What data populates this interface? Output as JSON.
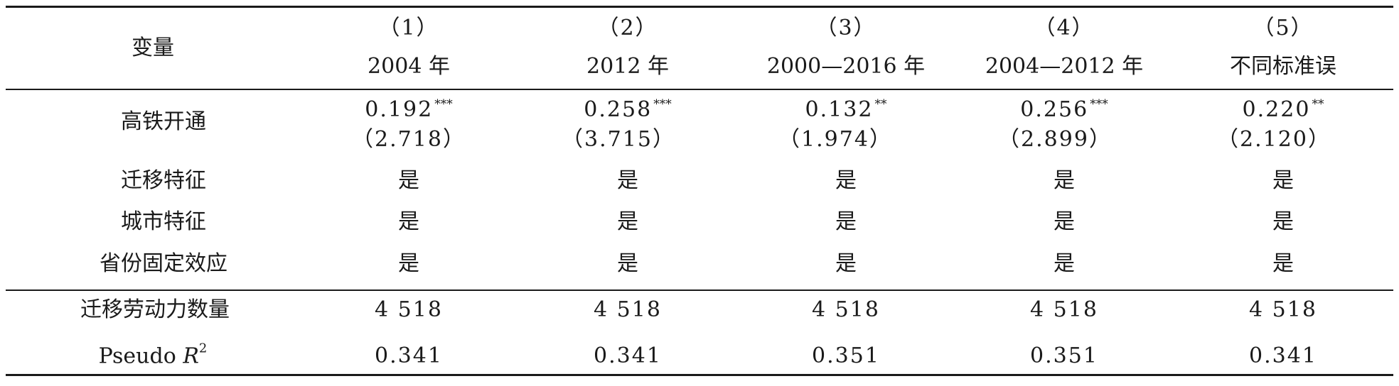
{
  "header": {
    "variable_label": "变量",
    "columns": [
      {
        "num": "（1）",
        "label": "2004 年"
      },
      {
        "num": "（2）",
        "label": "2012 年"
      },
      {
        "num": "（3）",
        "label": "2000—2016 年"
      },
      {
        "num": "（4）",
        "label": "2004—2012 年"
      },
      {
        "num": "（5）",
        "label": "不同标准误"
      }
    ]
  },
  "hsr_row": {
    "label": "高铁开通",
    "coefficients": [
      {
        "value": "0.192",
        "stars": "***",
        "tstat": "（2.718）"
      },
      {
        "value": "0.258",
        "stars": "***",
        "tstat": "（3.715）"
      },
      {
        "value": "0.132",
        "stars": "**",
        "tstat": "（1.974）"
      },
      {
        "value": "0.256",
        "stars": "***",
        "tstat": "（2.899）"
      },
      {
        "value": "0.220",
        "stars": "**",
        "tstat": "（2.120）"
      }
    ]
  },
  "control_rows": [
    {
      "label": "迁移特征",
      "values": [
        "是",
        "是",
        "是",
        "是",
        "是"
      ]
    },
    {
      "label": "城市特征",
      "values": [
        "是",
        "是",
        "是",
        "是",
        "是"
      ]
    },
    {
      "label": "省份固定效应",
      "values": [
        "是",
        "是",
        "是",
        "是",
        "是"
      ]
    }
  ],
  "footer_rows": {
    "n_label": "迁移劳动力数量",
    "n_values": [
      "4 518",
      "4 518",
      "4 518",
      "4 518",
      "4 518"
    ],
    "r2_label_prefix": "Pseudo",
    "r2_label_var": "R",
    "r2_label_sup": "2",
    "r2_values": [
      "0.341",
      "0.341",
      "0.351",
      "0.351",
      "0.341"
    ]
  }
}
